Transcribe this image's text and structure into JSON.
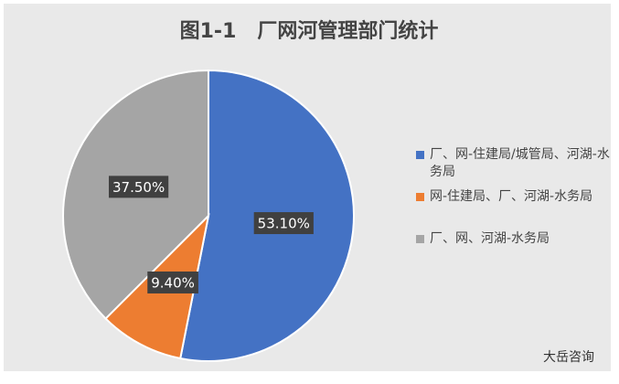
{
  "chart_data": {
    "type": "pie",
    "title": "图1-1   厂网河管理部门统计",
    "categories": [
      "厂、网-住建局/城管局、河湖-水务局",
      "网-住建局、厂、河湖-水务局",
      "厂、网、河湖-水务局"
    ],
    "values": [
      53.1,
      9.4,
      37.5
    ],
    "value_labels": [
      "53.10%",
      "9.40%",
      "37.50%"
    ],
    "colors": [
      "#4472c4",
      "#ed7d31",
      "#a5a5a5"
    ],
    "legend": "right"
  },
  "watermark": "大岳咨询"
}
